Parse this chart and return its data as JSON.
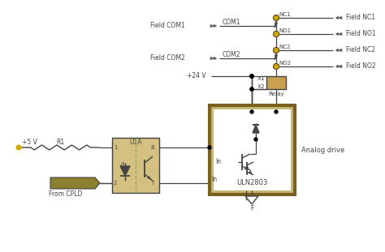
{
  "bg_color": "#ffffff",
  "line_color": "#444444",
  "tan_color": "#d4c48a",
  "olive_color": "#8B8B3A",
  "yellow_dot": "#d4a800",
  "dashed_color": "#90b050",
  "relay_color": "#c8a050",
  "figsize": [
    4.74,
    3.11
  ],
  "dpi": 100,
  "labels": {
    "R1": "R1",
    "plus5V": "+5 V",
    "from_cpld": "From CPLD",
    "U1A": "U1A",
    "pin1": "1",
    "pin2": "2",
    "pin7": "7",
    "pin8": "8",
    "ULN2803": "ULN2803",
    "In": "In",
    "analog_drive": "Analog drive",
    "plus24V": "+24 V",
    "X1": "X1",
    "X2": "X2",
    "Relay": "Relay",
    "COM1": "COM1",
    "COM2": "COM2",
    "NC1": "NC1",
    "NO1": "NO1",
    "NC2": "NC2",
    "NO2": "NO2",
    "Field_COM1": "Field COM1",
    "Field_COM2": "Field COM2",
    "Field_NC1": "Field NC1",
    "Field_NO1": "Field NO1",
    "Field_NC2": "Field NC2",
    "Field_NO2": "Field NO2",
    "F": "F"
  }
}
